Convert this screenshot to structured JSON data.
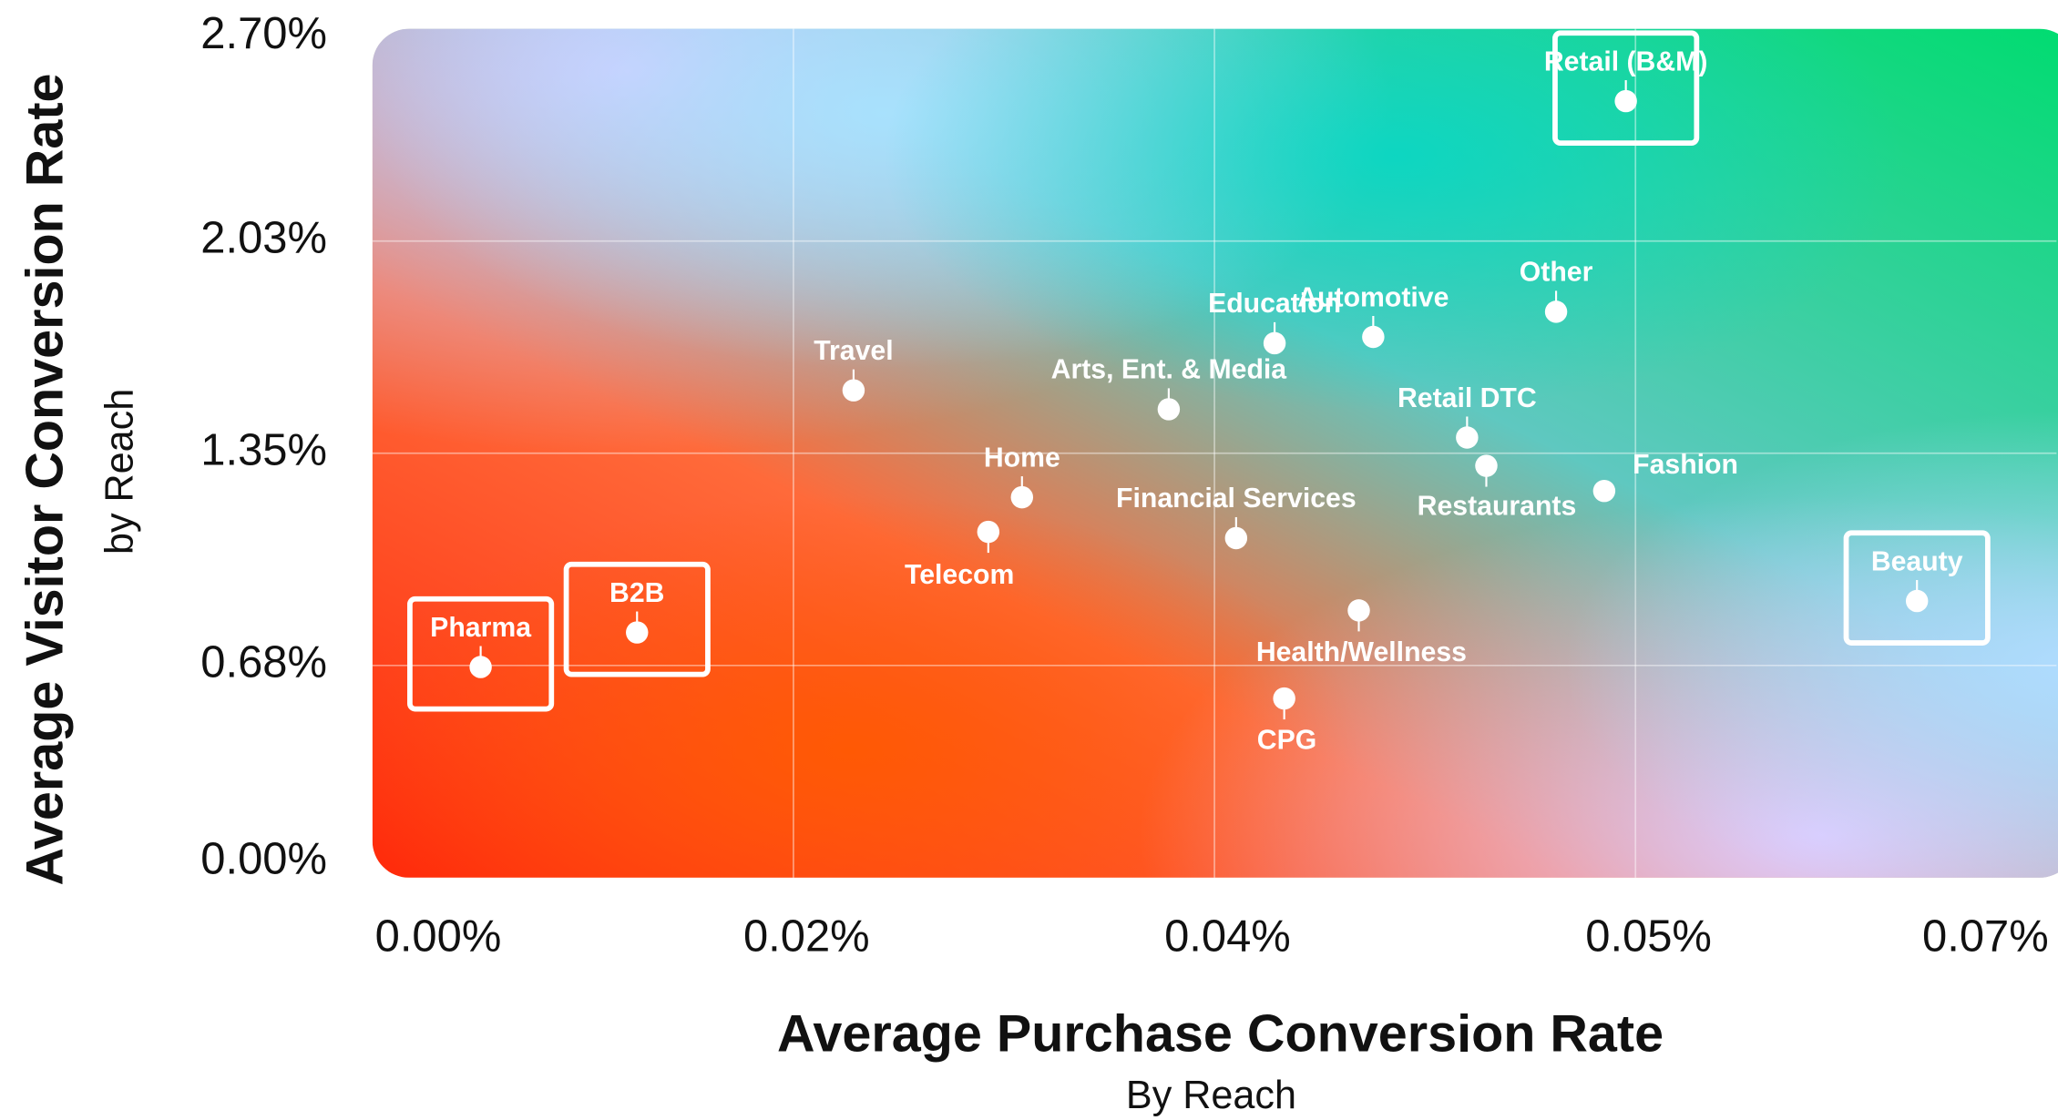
{
  "chart_data": {
    "type": "scatter",
    "x_label": "Average Purchase Conversion Rate",
    "x_sublabel": "By Reach",
    "y_label": "Average Visitor Conversion Rate",
    "y_sublabel": "by Reach",
    "xlim": [
      0,
      0.07
    ],
    "ylim": [
      0,
      2.7
    ],
    "xticks": [
      {
        "value": 0,
        "label": "0.00%"
      },
      {
        "value": 0.0175,
        "label": "0.02%"
      },
      {
        "value": 0.035,
        "label": "0.04%"
      },
      {
        "value": 0.0525,
        "label": "0.05%"
      },
      {
        "value": 0.07,
        "label": "0.07%"
      }
    ],
    "yticks": [
      {
        "value": 0,
        "label": "0.00%"
      },
      {
        "value": 0.675,
        "label": "0.68%"
      },
      {
        "value": 1.35,
        "label": "1.35%"
      },
      {
        "value": 2.025,
        "label": "2.03%"
      },
      {
        "value": 2.7,
        "label": "2.70%"
      }
    ],
    "grid": true,
    "color": "#ffffff",
    "labels": [
      "Pharma",
      "B2B",
      "Travel",
      "Home",
      "Telecom",
      "Arts, Ent. & Media",
      "Education",
      "Automotive",
      "Other",
      "Retail DTC",
      "Restaurants",
      "Fashion",
      "Financial Services",
      "Health/Wellness",
      "CPG",
      "Retail (B&M)",
      "Beauty"
    ],
    "x": [
      0.0045,
      0.011,
      0.02,
      0.027,
      0.0256,
      0.0331,
      0.0375,
      0.0416,
      0.0492,
      0.0455,
      0.0463,
      0.0512,
      0.0359,
      0.041,
      0.0379,
      0.0521,
      0.0642
    ],
    "values": [
      0.67,
      0.78,
      1.55,
      1.21,
      1.1,
      1.49,
      1.7,
      1.72,
      1.8,
      1.4,
      1.31,
      1.23,
      1.08,
      0.85,
      0.57,
      2.47,
      0.88
    ],
    "highlighted": [
      true,
      true,
      false,
      false,
      false,
      false,
      false,
      false,
      false,
      false,
      false,
      false,
      false,
      false,
      false,
      true,
      true
    ]
  }
}
